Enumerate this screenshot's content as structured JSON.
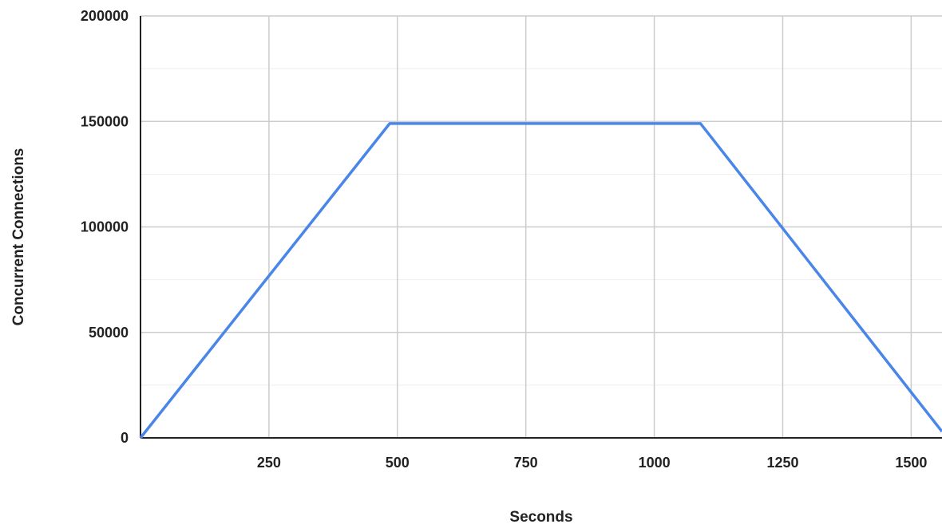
{
  "chart_data": {
    "type": "line",
    "title": "",
    "xlabel": "Seconds",
    "ylabel": "Concurrent Connections",
    "xlim": [
      0,
      1560
    ],
    "ylim": [
      0,
      200000
    ],
    "x_ticks": [
      250,
      500,
      750,
      1000,
      1250,
      1500
    ],
    "x_tick_labels": [
      "250",
      "500",
      "750",
      "1000",
      "1250",
      "1500"
    ],
    "y_ticks": [
      0,
      50000,
      100000,
      150000,
      200000
    ],
    "y_tick_labels": [
      "0",
      "50000",
      "100000",
      "150000",
      "200000"
    ],
    "grid": true,
    "legend": "none",
    "series": [
      {
        "color": "#4a86e8",
        "points": [
          {
            "x": 0,
            "y": 0
          },
          {
            "x": 485,
            "y": 149000
          },
          {
            "x": 1090,
            "y": 149000
          },
          {
            "x": 1560,
            "y": 3000
          }
        ]
      }
    ]
  }
}
